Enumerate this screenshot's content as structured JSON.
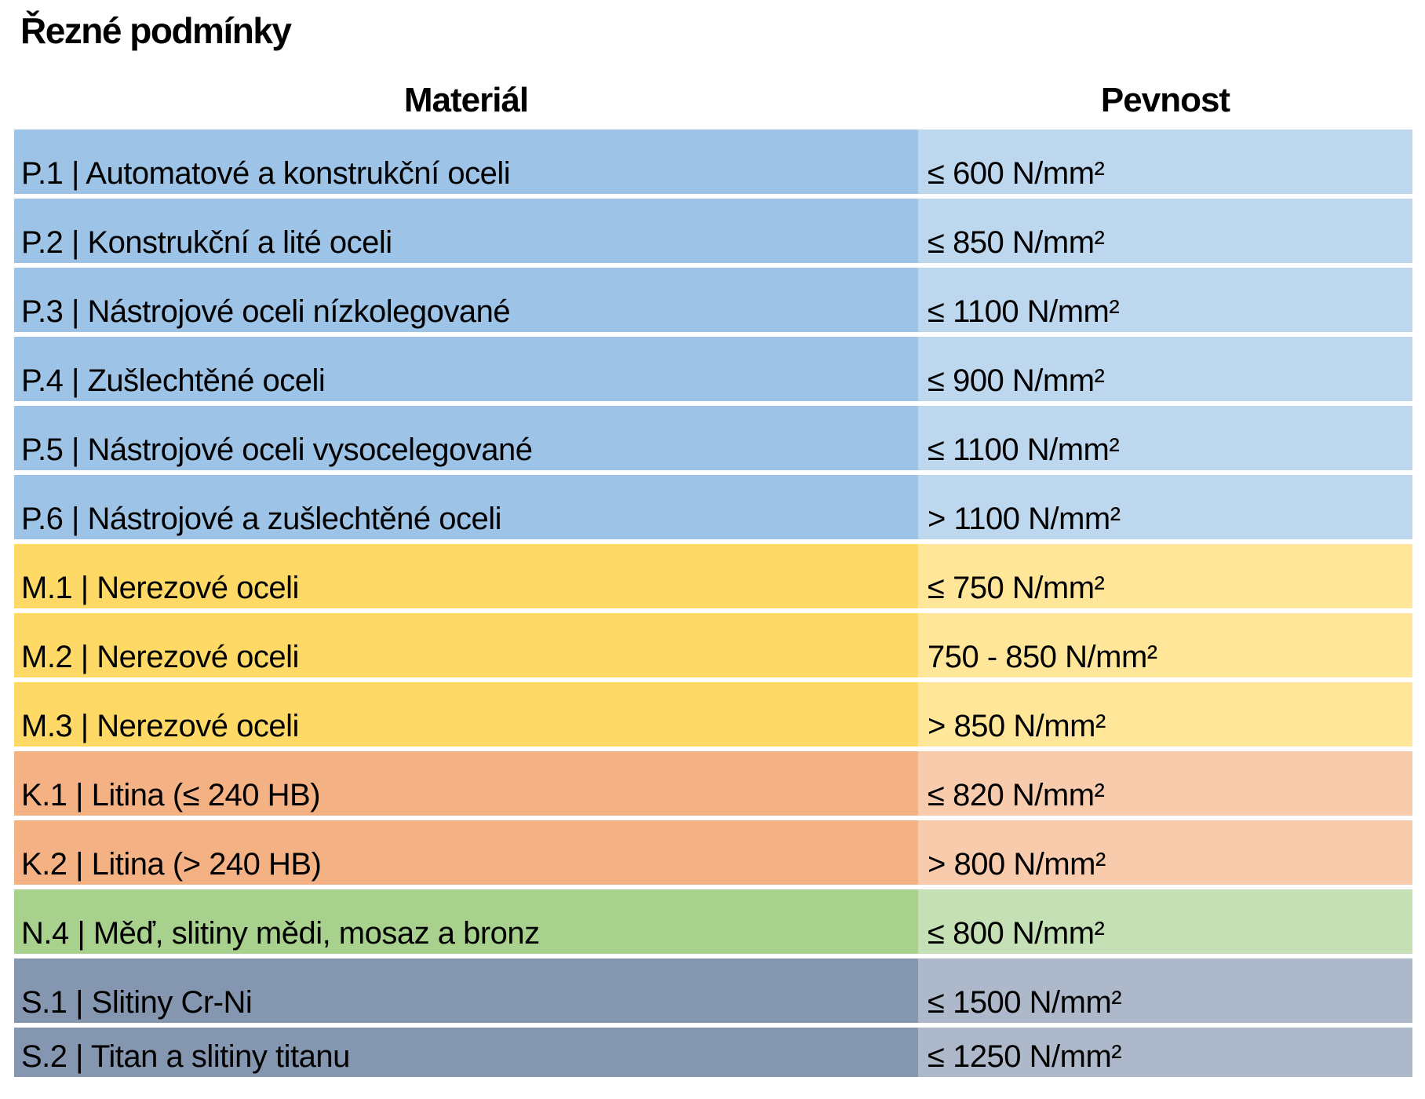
{
  "title": "Řezné podmínky",
  "table": {
    "headers": {
      "material": "Materiál",
      "strength": "Pevnost"
    },
    "rows": [
      {
        "group": "P",
        "material": "P.1 | Automatové a konstrukční oceli",
        "strength": "≤ 600 N/mm²"
      },
      {
        "group": "P",
        "material": "P.2 | Konstrukční a lité oceli",
        "strength": "≤ 850 N/mm²"
      },
      {
        "group": "P",
        "material": "P.3 | Nástrojové oceli nízkolegované",
        "strength": "≤ 1100 N/mm²"
      },
      {
        "group": "P",
        "material": "P.4 | Zušlechtěné oceli",
        "strength": "≤ 900 N/mm²"
      },
      {
        "group": "P",
        "material": "P.5 | Nástrojové oceli vysocelegované",
        "strength": "≤ 1100 N/mm²"
      },
      {
        "group": "P",
        "material": "P.6 | Nástrojové a zušlechtěné oceli",
        "strength": "> 1100 N/mm²"
      },
      {
        "group": "M",
        "material": "M.1 | Nerezové oceli",
        "strength": "≤ 750 N/mm²"
      },
      {
        "group": "M",
        "material": "M.2 | Nerezové oceli",
        "strength": "750 - 850 N/mm²"
      },
      {
        "group": "M",
        "material": "M.3 | Nerezové oceli",
        "strength": "> 850 N/mm²"
      },
      {
        "group": "K",
        "material": "K.1 | Litina (≤ 240 HB)",
        "strength": "≤ 820 N/mm²"
      },
      {
        "group": "K",
        "material": "K.2 | Litina (> 240 HB)",
        "strength": "> 800 N/mm²"
      },
      {
        "group": "N",
        "material": "N.4 | Měď, slitiny mědi, mosaz a bronz",
        "strength": "≤ 800 N/mm²"
      },
      {
        "group": "S",
        "material": "S.1 | Slitiny Cr-Ni",
        "strength": "≤ 1500 N/mm²"
      },
      {
        "group": "S",
        "material": "S.2 | Titan a slitiny titanu",
        "strength": "≤ 1250 N/mm²"
      }
    ]
  },
  "colors": {
    "P": {
      "left": "#9DC3E6",
      "right": "#BDD7EE"
    },
    "M": {
      "left": "#FFD966",
      "right": "#FFE699"
    },
    "K": {
      "left": "#F4B183",
      "right": "#F8CBAD"
    },
    "N": {
      "left": "#A9D18E",
      "right": "#C5E0B4"
    },
    "S": {
      "left": "#8496B0",
      "right": "#ADB9CA"
    },
    "row_gap": "#FFFFFF",
    "text": "#000000",
    "background": "#FFFFFF"
  }
}
